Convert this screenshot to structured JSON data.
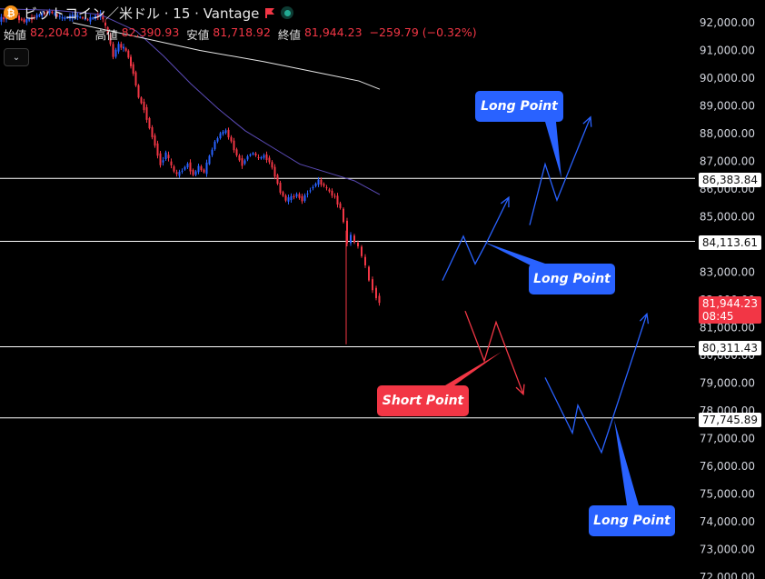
{
  "header": {
    "title": "ビットコイン／米ドル · 15 · Vantage",
    "coin_icon": "bitcoin-icon",
    "ohlc": {
      "open_label": "始値",
      "open": "82,204.03",
      "high_label": "高値",
      "high": "82,390.93",
      "low_label": "安値",
      "low": "81,718.92",
      "close_label": "終値",
      "close": "81,944.23",
      "change": "−259.79 (−0.32%)"
    },
    "collapse_icon": "chevron-down-icon"
  },
  "colors": {
    "up": "#2962ff",
    "down": "#f23645",
    "long": "#2962ff",
    "short": "#f23645",
    "ma_fast": "#5b4bb7",
    "ma_slow": "#e6e6e6"
  },
  "chart_data": {
    "type": "candlestick",
    "symbol": "ビットコイン／米ドル",
    "interval": "15",
    "ylim": [
      72000,
      92500
    ],
    "y_ticks": [
      {
        "value": 92000,
        "label": "92,000.00"
      },
      {
        "value": 91000,
        "label": "91,000.00"
      },
      {
        "value": 90000,
        "label": "90,000.00"
      },
      {
        "value": 89000,
        "label": "89,000.00"
      },
      {
        "value": 88000,
        "label": "88,000.00"
      },
      {
        "value": 87000,
        "label": "87,000.00"
      },
      {
        "value": 86000,
        "label": "86,000.00"
      },
      {
        "value": 85000,
        "label": "85,000.00"
      },
      {
        "value": 84000,
        "label": "84,000.00"
      },
      {
        "value": 83000,
        "label": "83,000.00"
      },
      {
        "value": 82000,
        "label": "82,000.00"
      },
      {
        "value": 81000,
        "label": "81,000.00"
      },
      {
        "value": 80000,
        "label": "80,000.00"
      },
      {
        "value": 79000,
        "label": "79,000.00"
      },
      {
        "value": 78000,
        "label": "78,000.00"
      },
      {
        "value": 77000,
        "label": "77,000.00"
      },
      {
        "value": 76000,
        "label": "76,000.00"
      },
      {
        "value": 75000,
        "label": "75,000.00"
      },
      {
        "value": 74000,
        "label": "74,000.00"
      },
      {
        "value": 73000,
        "label": "73,000.00"
      },
      {
        "value": 72000,
        "label": "72,000.00"
      }
    ],
    "levels": [
      {
        "value": 86383.84,
        "label": "86,383.84"
      },
      {
        "value": 84113.61,
        "label": "84,113.61"
      },
      {
        "value": 80311.43,
        "label": "80,311.43"
      },
      {
        "value": 77745.89,
        "label": "77,745.89"
      }
    ],
    "last_price": {
      "value": 81944.23,
      "label": "81,944.23",
      "countdown": "08:45"
    },
    "price_path": [
      [
        0,
        92100
      ],
      [
        14,
        92300
      ],
      [
        28,
        92050
      ],
      [
        42,
        92250
      ],
      [
        56,
        92400
      ],
      [
        70,
        92150
      ],
      [
        84,
        92250
      ],
      [
        98,
        92100
      ],
      [
        112,
        92300
      ],
      [
        120,
        91600
      ],
      [
        126,
        90800
      ],
      [
        132,
        91200
      ],
      [
        140,
        91000
      ],
      [
        148,
        90200
      ],
      [
        154,
        89300
      ],
      [
        160,
        88900
      ],
      [
        166,
        88200
      ],
      [
        172,
        87600
      ],
      [
        178,
        86900
      ],
      [
        184,
        87300
      ],
      [
        190,
        86800
      ],
      [
        196,
        86500
      ],
      [
        202,
        86700
      ],
      [
        208,
        86900
      ],
      [
        214,
        86500
      ],
      [
        220,
        86800
      ],
      [
        226,
        86600
      ],
      [
        232,
        87200
      ],
      [
        238,
        87700
      ],
      [
        244,
        88000
      ],
      [
        250,
        88100
      ],
      [
        256,
        87700
      ],
      [
        262,
        87200
      ],
      [
        268,
        86900
      ],
      [
        274,
        87200
      ],
      [
        280,
        87300
      ],
      [
        286,
        87100
      ],
      [
        292,
        87200
      ],
      [
        298,
        87000
      ],
      [
        304,
        86500
      ],
      [
        310,
        85900
      ],
      [
        316,
        85600
      ],
      [
        322,
        85700
      ],
      [
        328,
        85800
      ],
      [
        334,
        85600
      ],
      [
        340,
        85900
      ],
      [
        346,
        86100
      ],
      [
        352,
        86300
      ],
      [
        358,
        86100
      ],
      [
        364,
        85900
      ],
      [
        370,
        85700
      ],
      [
        376,
        85300
      ],
      [
        380,
        84800
      ],
      [
        384,
        84100
      ],
      [
        388,
        84300
      ],
      [
        392,
        84100
      ],
      [
        396,
        83900
      ],
      [
        400,
        83600
      ],
      [
        404,
        83200
      ],
      [
        408,
        82700
      ],
      [
        412,
        82400
      ],
      [
        416,
        82100
      ],
      [
        419,
        81944
      ]
    ],
    "ma_fast": [
      [
        0,
        92500
      ],
      [
        60,
        92450
      ],
      [
        110,
        92300
      ],
      [
        150,
        91700
      ],
      [
        180,
        90800
      ],
      [
        210,
        89800
      ],
      [
        240,
        88900
      ],
      [
        270,
        88100
      ],
      [
        300,
        87500
      ],
      [
        330,
        86900
      ],
      [
        360,
        86600
      ],
      [
        390,
        86300
      ],
      [
        418,
        85800
      ]
    ],
    "ma_slow": [
      [
        80,
        92000
      ],
      [
        150,
        91500
      ],
      [
        220,
        91000
      ],
      [
        290,
        90600
      ],
      [
        350,
        90200
      ],
      [
        395,
        89900
      ],
      [
        418,
        89600
      ]
    ],
    "projections": [
      {
        "kind": "long",
        "points": [
          [
            487,
            82700
          ],
          [
            510,
            84300
          ],
          [
            523,
            83300
          ],
          [
            536,
            84100
          ],
          [
            560,
            85700
          ]
        ]
      },
      {
        "kind": "long",
        "points": [
          [
            583,
            84700
          ],
          [
            600,
            86900
          ],
          [
            613,
            85600
          ],
          [
            650,
            88600
          ]
        ]
      },
      {
        "kind": "short",
        "points": [
          [
            512,
            81600
          ],
          [
            533,
            79800
          ],
          [
            546,
            81200
          ],
          [
            576,
            78600
          ]
        ]
      },
      {
        "kind": "long",
        "points": [
          [
            600,
            79200
          ],
          [
            630,
            77200
          ],
          [
            636,
            78200
          ],
          [
            662,
            76500
          ],
          [
            712,
            81500
          ]
        ]
      }
    ],
    "annotations": [
      {
        "text": "Long Point",
        "kind": "long"
      },
      {
        "text": "Long Point",
        "kind": "long"
      },
      {
        "text": "Short Point",
        "kind": "short"
      },
      {
        "text": "Long Point",
        "kind": "long"
      }
    ]
  }
}
